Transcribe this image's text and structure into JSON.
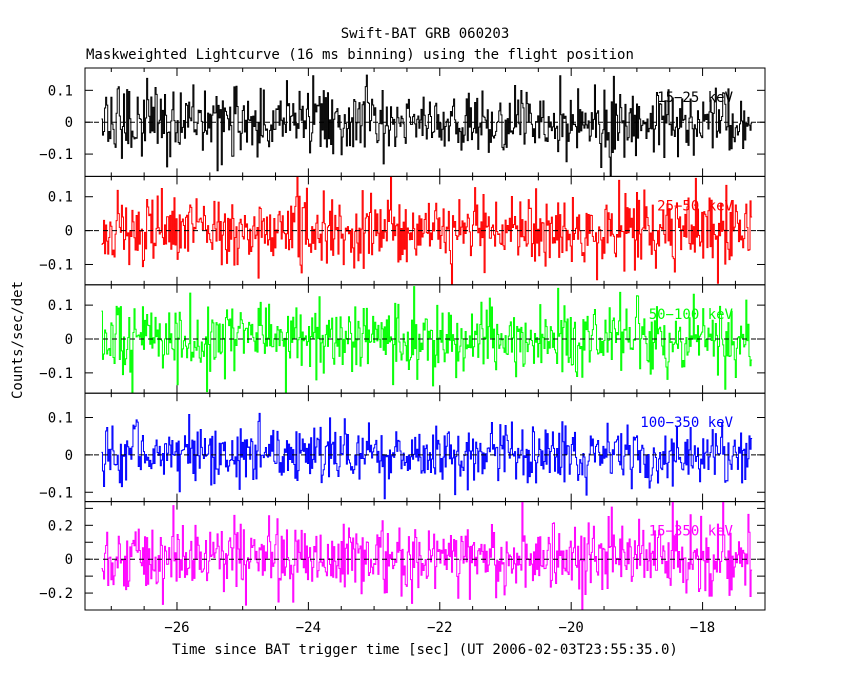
{
  "title": "Swift-BAT GRB 060203",
  "subtitle": "Maskweighted Lightcurve (16 ms binning) using the flight position",
  "chart_data": {
    "type": "line",
    "xlabel": "Time since BAT trigger time [sec] (UT 2006-02-03T23:55:35.0)",
    "ylabel": "Counts/sec/det",
    "xlim": [
      -27.4,
      -17.05
    ],
    "x_range_data": [
      -27.15,
      -17.25
    ],
    "x_ticks": [
      -26,
      -24,
      -22,
      -20,
      -18
    ],
    "x_tick_labels": [
      "−26",
      "−24",
      "−22",
      "−20",
      "−18"
    ],
    "bin_width": 0.016,
    "grid": false,
    "panels": [
      {
        "name": "15−25 keV",
        "color": "#000000",
        "ylim": [
          -0.17,
          0.17
        ],
        "y_ticks": [
          -0.1,
          0,
          0.1
        ],
        "y_tick_labels": [
          "−0.1",
          "0",
          "0.1"
        ],
        "noise_sigma": 0.055
      },
      {
        "name": "25−50 keV",
        "color": "#ff0000",
        "ylim": [
          -0.16,
          0.16
        ],
        "y_ticks": [
          -0.1,
          0,
          0.1
        ],
        "y_tick_labels": [
          "−0.1",
          "0",
          "0.1"
        ],
        "noise_sigma": 0.055
      },
      {
        "name": "50−100 keV",
        "color": "#00ff00",
        "ylim": [
          -0.16,
          0.16
        ],
        "y_ticks": [
          -0.1,
          0,
          0.1
        ],
        "y_tick_labels": [
          "−0.1",
          "0",
          "0.1"
        ],
        "noise_sigma": 0.052
      },
      {
        "name": "100−350 keV",
        "color": "#0000ff",
        "ylim": [
          -0.125,
          0.165
        ],
        "y_ticks": [
          -0.1,
          0,
          0.1
        ],
        "y_tick_labels": [
          "−0.1",
          "0",
          "0.1"
        ],
        "noise_sigma": 0.04
      },
      {
        "name": "15−350 keV",
        "color": "#ff00ff",
        "ylim": [
          -0.3,
          0.34
        ],
        "y_ticks": [
          -0.2,
          -0.1,
          0,
          0.1,
          0.2,
          0.3
        ],
        "y_tick_labels": [
          "−0.2",
          "",
          "0",
          "",
          "0.2",
          ""
        ],
        "noise_sigma": 0.1
      }
    ]
  }
}
